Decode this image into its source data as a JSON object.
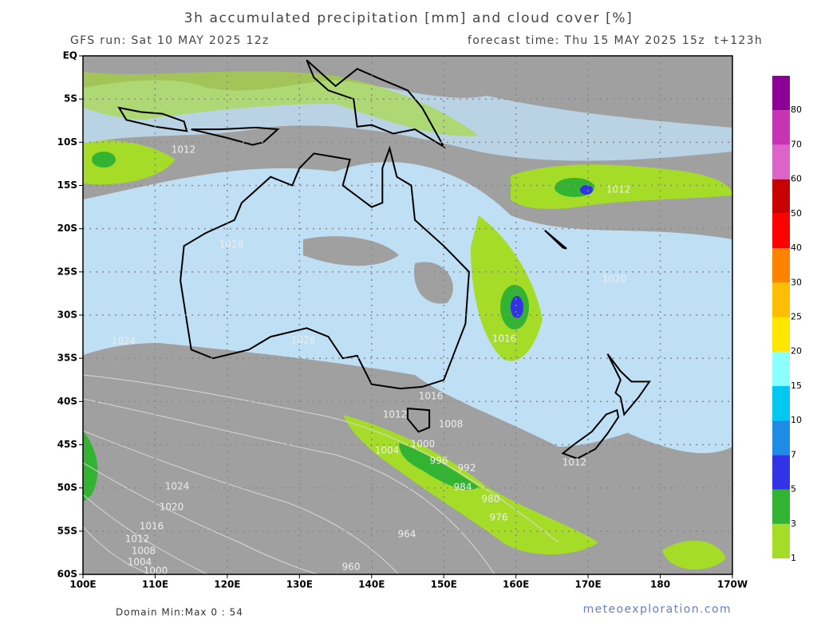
{
  "header": {
    "title": "3h accumulated precipitation [mm] and cloud cover [%]",
    "run": "GFS run: Sat 10 MAY 2025 12z",
    "forecast": "forecast time: Thu 15 MAY 2025 15z  t+123h"
  },
  "map": {
    "lat_labels": [
      "EQ",
      "5S",
      "10S",
      "15S",
      "20S",
      "25S",
      "30S",
      "35S",
      "40S",
      "45S",
      "50S",
      "55S",
      "60S"
    ],
    "lon_labels": [
      "100E",
      "110E",
      "120E",
      "130E",
      "140E",
      "150E",
      "160E",
      "170E",
      "180",
      "170W"
    ],
    "isobar_labels": [
      "1012",
      "1012",
      "1024",
      "1028",
      "1028",
      "1016",
      "1012",
      "1008",
      "1004",
      "1000",
      "996",
      "992",
      "984",
      "980",
      "976",
      "964",
      "960",
      "1024",
      "1020",
      "1016",
      "1012",
      "1008",
      "1004",
      "1000",
      "1020",
      "1016",
      "1012"
    ]
  },
  "colorbar": {
    "levels": [
      1,
      3,
      5,
      7,
      10,
      15,
      20,
      25,
      30,
      40,
      50,
      60,
      70,
      80
    ],
    "colors": [
      "#a5dc28",
      "#32b432",
      "#3232e6",
      "#1e8ce6",
      "#00c8f0",
      "#8cffff",
      "#ffe600",
      "#ffbe00",
      "#ff8200",
      "#ff0000",
      "#c80000",
      "#dc64c8",
      "#c832b4",
      "#8c0096"
    ]
  },
  "footer": {
    "domain": "Domain Min:Max 0 : 54",
    "website": "meteoexploration.com"
  }
}
